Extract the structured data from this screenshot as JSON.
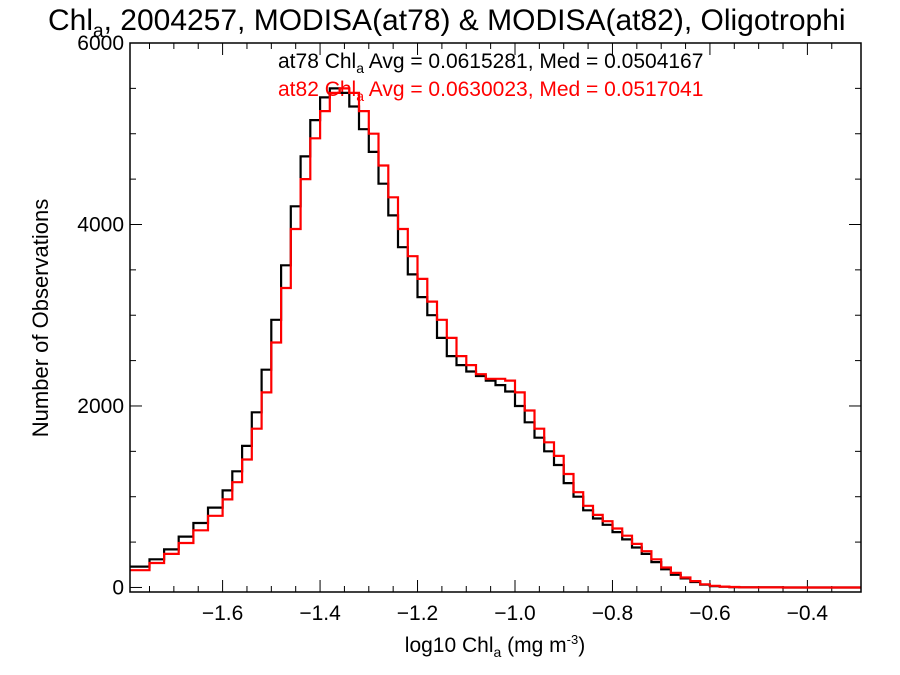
{
  "chart_data": {
    "type": "line",
    "title": {
      "prefix": "Chl",
      "sub": "a",
      "rest": ", 2004257, MODISA(at78) & MODISA(at82), Oligotrophi"
    },
    "xlabel": {
      "prefix": "log10 Chl",
      "sub": "a",
      "mid": " (mg m",
      "sup": "-3",
      "end": ")"
    },
    "ylabel": "Number of Observations",
    "xlim": [
      -1.79,
      -0.29
    ],
    "ylim": [
      -50,
      6000
    ],
    "xticks": [
      {
        "v": -1.6,
        "label": "−1.6"
      },
      {
        "v": -1.4,
        "label": "−1.4"
      },
      {
        "v": -1.2,
        "label": "−1.2"
      },
      {
        "v": -1.0,
        "label": "−1.0"
      },
      {
        "v": -0.8,
        "label": "−0.8"
      },
      {
        "v": -0.6,
        "label": "−0.6"
      },
      {
        "v": -0.4,
        "label": "−0.4"
      }
    ],
    "yticks": [
      {
        "v": 0,
        "label": "0"
      },
      {
        "v": 2000,
        "label": "2000"
      },
      {
        "v": 4000,
        "label": "4000"
      },
      {
        "v": 6000,
        "label": "6000"
      }
    ],
    "annotations": [
      {
        "pre": "at78 Chl",
        "sub": "a",
        "post": " Avg = 0.0615281, Med = 0.0504167",
        "color": "#000000"
      },
      {
        "pre": "at82 Chl",
        "sub": "a",
        "post": " Avg = 0.0630023, Med = 0.0517041",
        "color": "#ff0000"
      }
    ],
    "series": [
      {
        "color": "#000000",
        "x": [
          -1.79,
          -1.75,
          -1.72,
          -1.69,
          -1.66,
          -1.63,
          -1.6,
          -1.58,
          -1.56,
          -1.54,
          -1.52,
          -1.5,
          -1.48,
          -1.46,
          -1.44,
          -1.42,
          -1.4,
          -1.38,
          -1.36,
          -1.34,
          -1.32,
          -1.3,
          -1.28,
          -1.26,
          -1.24,
          -1.22,
          -1.2,
          -1.18,
          -1.16,
          -1.14,
          -1.12,
          -1.1,
          -1.08,
          -1.06,
          -1.04,
          -1.02,
          -1.0,
          -0.98,
          -0.96,
          -0.94,
          -0.92,
          -0.9,
          -0.88,
          -0.86,
          -0.84,
          -0.82,
          -0.8,
          -0.78,
          -0.76,
          -0.74,
          -0.72,
          -0.7,
          -0.68,
          -0.66,
          -0.64,
          -0.62,
          -0.6,
          -0.58,
          -0.56,
          -0.54,
          -0.5,
          -0.45,
          -0.4,
          -0.35,
          -0.29
        ],
        "values": [
          230,
          310,
          420,
          560,
          710,
          880,
          1070,
          1280,
          1560,
          1930,
          2400,
          2950,
          3550,
          4200,
          4750,
          5150,
          5400,
          5500,
          5450,
          5300,
          5050,
          4800,
          4450,
          4100,
          3750,
          3450,
          3200,
          3000,
          2750,
          2550,
          2450,
          2380,
          2330,
          2280,
          2230,
          2160,
          2000,
          1820,
          1650,
          1500,
          1350,
          1150,
          1000,
          850,
          760,
          690,
          610,
          530,
          440,
          370,
          280,
          200,
          140,
          100,
          60,
          30,
          15,
          8,
          4,
          2,
          1,
          0,
          0,
          0,
          0
        ]
      },
      {
        "color": "#ff0000",
        "x": [
          -1.79,
          -1.75,
          -1.72,
          -1.69,
          -1.66,
          -1.63,
          -1.6,
          -1.58,
          -1.56,
          -1.54,
          -1.52,
          -1.5,
          -1.48,
          -1.46,
          -1.44,
          -1.42,
          -1.4,
          -1.38,
          -1.36,
          -1.34,
          -1.32,
          -1.3,
          -1.28,
          -1.26,
          -1.24,
          -1.22,
          -1.2,
          -1.18,
          -1.16,
          -1.14,
          -1.12,
          -1.1,
          -1.08,
          -1.06,
          -1.04,
          -1.02,
          -1.0,
          -0.98,
          -0.96,
          -0.94,
          -0.92,
          -0.9,
          -0.88,
          -0.86,
          -0.84,
          -0.82,
          -0.8,
          -0.78,
          -0.76,
          -0.74,
          -0.72,
          -0.7,
          -0.68,
          -0.66,
          -0.64,
          -0.62,
          -0.6,
          -0.58,
          -0.56,
          -0.54,
          -0.5,
          -0.45,
          -0.4,
          -0.35,
          -0.29
        ],
        "values": [
          190,
          270,
          370,
          490,
          630,
          790,
          970,
          1160,
          1410,
          1750,
          2150,
          2700,
          3300,
          3950,
          4500,
          4950,
          5250,
          5450,
          5500,
          5450,
          5250,
          5000,
          4650,
          4300,
          3950,
          3650,
          3400,
          3150,
          2950,
          2750,
          2550,
          2450,
          2350,
          2300,
          2300,
          2280,
          2150,
          1950,
          1750,
          1600,
          1450,
          1250,
          1050,
          900,
          800,
          730,
          650,
          570,
          480,
          400,
          310,
          220,
          160,
          110,
          70,
          35,
          18,
          9,
          5,
          2,
          1,
          0,
          0,
          0,
          0
        ]
      }
    ]
  }
}
